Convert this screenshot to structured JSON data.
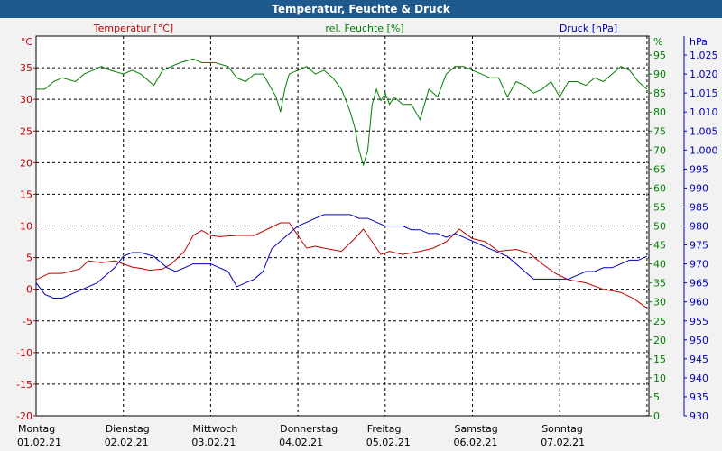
{
  "title": "Temperatur, Feuchte & Druck",
  "chart_data": {
    "type": "line",
    "title": "Temperatur, Feuchte & Druck",
    "axes": {
      "temperature": {
        "unit": "°C",
        "label": "Temperatur [°C]",
        "range": [
          -20,
          40
        ],
        "ticks": [
          -20,
          -15,
          -10,
          -5,
          0,
          5,
          10,
          15,
          20,
          25,
          30,
          35
        ],
        "color": "#c00000"
      },
      "humidity": {
        "unit": "%",
        "label": "rel. Feuchte [%]",
        "range": [
          0,
          100
        ],
        "ticks": [
          0,
          5,
          10,
          15,
          20,
          25,
          30,
          35,
          40,
          45,
          50,
          55,
          60,
          65,
          70,
          75,
          80,
          85,
          90,
          95
        ],
        "color": "#008000"
      },
      "pressure": {
        "unit": "hPa",
        "label": "Druck [hPa]",
        "range": [
          930,
          1030
        ],
        "ticks": [
          "930",
          "935",
          "940",
          "945",
          "950",
          "955",
          "960",
          "965",
          "970",
          "975",
          "980",
          "985",
          "990",
          "995",
          "1.000",
          "1.005",
          "1.010",
          "1.015",
          "1.020",
          "1.025"
        ],
        "color": "#0000c0"
      }
    },
    "x": {
      "range_days": [
        0,
        7
      ],
      "labels": [
        {
          "day": "Montag",
          "date": "01.02.21"
        },
        {
          "day": "Dienstag",
          "date": "02.02.21"
        },
        {
          "day": "Mittwoch",
          "date": "03.02.21"
        },
        {
          "day": "Donnerstag",
          "date": "04.02.21"
        },
        {
          "day": "Freitag",
          "date": "05.02.21"
        },
        {
          "day": "Samstag",
          "date": "06.02.21"
        },
        {
          "day": "Sonntag",
          "date": "07.02.21"
        }
      ]
    },
    "grid": true,
    "series": [
      {
        "name": "Temperatur [°C]",
        "axis": "temperature",
        "color": "#c00000",
        "x": [
          0,
          0.15,
          0.3,
          0.5,
          0.6,
          0.75,
          0.9,
          1.0,
          1.1,
          1.2,
          1.3,
          1.45,
          1.55,
          1.7,
          1.8,
          1.9,
          2.0,
          2.1,
          2.3,
          2.5,
          2.65,
          2.8,
          2.9,
          3.0,
          3.1,
          3.2,
          3.3,
          3.5,
          3.65,
          3.75,
          3.85,
          3.95,
          4.05,
          4.2,
          4.4,
          4.55,
          4.7,
          4.85,
          5.0,
          5.15,
          5.3,
          5.5,
          5.65,
          5.8,
          5.95,
          6.1,
          6.3,
          6.5,
          6.7,
          6.85,
          7.0
        ],
        "values": [
          1.5,
          2.5,
          2.5,
          3.2,
          4.5,
          4.2,
          4.5,
          4.0,
          3.5,
          3.3,
          3.0,
          3.2,
          4.0,
          6.0,
          8.5,
          9.3,
          8.5,
          8.3,
          8.5,
          8.5,
          9.5,
          10.5,
          10.5,
          8.5,
          6.5,
          6.8,
          6.5,
          6.0,
          8.0,
          9.5,
          7.5,
          5.5,
          6.0,
          5.5,
          6.0,
          6.5,
          7.5,
          9.5,
          8.0,
          7.5,
          6.0,
          6.3,
          5.7,
          4.0,
          2.5,
          1.5,
          1.0,
          0.0,
          -0.5,
          -1.5,
          -3.0
        ]
      },
      {
        "name": "rel. Feuchte [%]",
        "axis": "humidity",
        "color": "#008000",
        "x": [
          0,
          0.1,
          0.2,
          0.3,
          0.45,
          0.55,
          0.65,
          0.75,
          0.85,
          1.0,
          1.1,
          1.2,
          1.35,
          1.45,
          1.55,
          1.65,
          1.8,
          1.9,
          2.05,
          2.2,
          2.3,
          2.4,
          2.5,
          2.6,
          2.7,
          2.75,
          2.8,
          2.85,
          2.9,
          3.0,
          3.1,
          3.2,
          3.3,
          3.4,
          3.5,
          3.55,
          3.6,
          3.65,
          3.7,
          3.75,
          3.8,
          3.85,
          3.9,
          3.95,
          4.0,
          4.05,
          4.1,
          4.2,
          4.3,
          4.4,
          4.5,
          4.6,
          4.7,
          4.8,
          4.9,
          5.0,
          5.1,
          5.2,
          5.3,
          5.4,
          5.5,
          5.6,
          5.7,
          5.8,
          5.9,
          6.0,
          6.1,
          6.2,
          6.3,
          6.4,
          6.5,
          6.6,
          6.7,
          6.8,
          6.9,
          7.0
        ],
        "values": [
          86,
          86,
          88,
          89,
          88,
          90,
          91,
          92,
          91,
          90,
          91,
          90,
          87,
          91,
          92,
          93,
          94,
          93,
          93,
          92,
          89,
          88,
          90,
          90,
          86,
          84,
          80,
          86,
          90,
          91,
          92,
          90,
          91,
          89,
          86,
          83,
          80,
          76,
          70,
          66,
          70,
          82,
          86,
          83,
          85,
          82,
          84,
          82,
          82,
          78,
          86,
          84,
          90,
          92,
          92,
          91,
          90,
          89,
          89,
          84,
          88,
          87,
          85,
          86,
          88,
          84,
          88,
          88,
          87,
          89,
          88,
          90,
          92,
          91,
          88,
          86
        ]
      },
      {
        "name": "Druck [hPa]",
        "axis": "pressure",
        "color": "#0000c0",
        "x": [
          0,
          0.1,
          0.2,
          0.3,
          0.5,
          0.7,
          0.9,
          1.0,
          1.1,
          1.2,
          1.35,
          1.5,
          1.6,
          1.7,
          1.8,
          1.9,
          2.0,
          2.1,
          2.2,
          2.3,
          2.4,
          2.5,
          2.6,
          2.7,
          2.8,
          2.9,
          3.0,
          3.1,
          3.2,
          3.3,
          3.4,
          3.5,
          3.6,
          3.7,
          3.8,
          3.9,
          4.0,
          4.1,
          4.2,
          4.3,
          4.4,
          4.5,
          4.6,
          4.7,
          4.8,
          4.9,
          5.0,
          5.1,
          5.2,
          5.3,
          5.4,
          5.5,
          5.6,
          5.7,
          5.8,
          5.9,
          6.0,
          6.1,
          6.2,
          6.3,
          6.4,
          6.5,
          6.6,
          6.7,
          6.8,
          6.9,
          7.0
        ],
        "values": [
          965,
          962,
          961,
          961,
          963,
          965,
          969,
          972,
          973,
          973,
          972,
          969,
          968,
          969,
          970,
          970,
          970,
          969,
          968,
          964,
          965,
          966,
          968,
          974,
          976,
          978,
          980,
          981,
          982,
          983,
          983,
          983,
          983,
          982,
          982,
          981,
          980,
          980,
          980,
          979,
          979,
          978,
          978,
          977,
          978,
          977,
          976,
          975,
          974,
          973,
          972,
          970,
          968,
          966,
          966,
          966,
          966,
          966,
          967,
          968,
          968,
          969,
          969,
          970,
          971,
          971,
          972
        ]
      }
    ]
  }
}
